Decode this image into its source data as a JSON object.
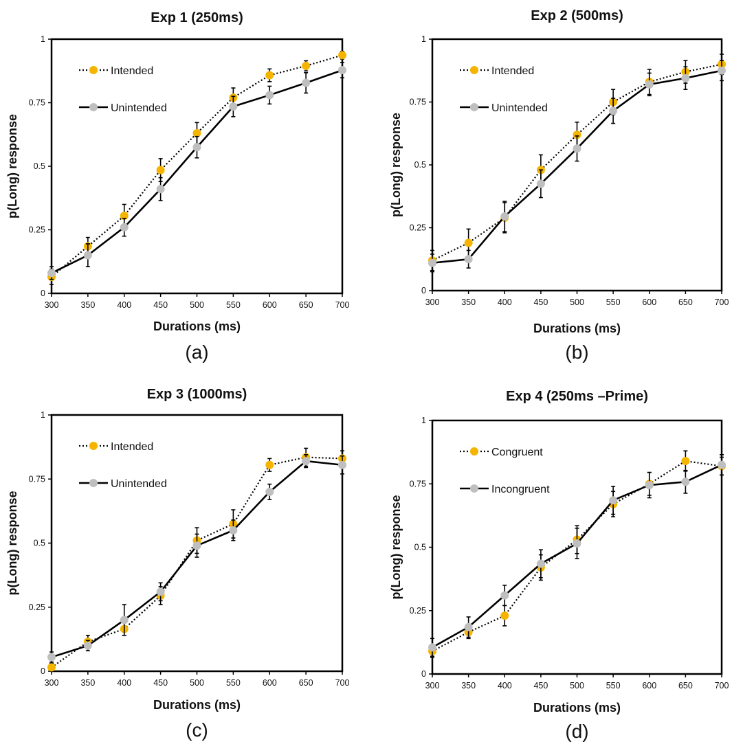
{
  "colors": {
    "intended": "#f5b400",
    "unintended": "#bfbfbf",
    "line": "#000000"
  },
  "chart_data": [
    {
      "type": "line",
      "title": "Exp 1 (250ms)",
      "caption": "(a)",
      "xlabel": "Durations (ms)",
      "ylabel": "p(Long) response",
      "x": [
        300,
        350,
        400,
        450,
        500,
        550,
        600,
        650,
        700
      ],
      "xticks": [
        "300",
        "350",
        "400",
        "450",
        "500",
        "550",
        "600",
        "650",
        "700"
      ],
      "yticks": [
        "0",
        "0.25",
        "0.5",
        "0.75",
        "1"
      ],
      "ylim": [
        0,
        1
      ],
      "legend": "top-left",
      "series": [
        {
          "name": "Intended",
          "style": "dotted",
          "color": "#f5b400",
          "values": [
            0.065,
            0.185,
            0.305,
            0.485,
            0.63,
            0.77,
            0.858,
            0.895,
            0.937
          ],
          "error": [
            0.03,
            0.035,
            0.045,
            0.045,
            0.042,
            0.038,
            0.025,
            0.02,
            0.015
          ]
        },
        {
          "name": "Unintended",
          "style": "solid",
          "color": "#bfbfbf",
          "values": [
            0.08,
            0.15,
            0.26,
            0.41,
            0.575,
            0.735,
            0.78,
            0.828,
            0.878
          ],
          "error": [
            0.025,
            0.045,
            0.035,
            0.045,
            0.042,
            0.04,
            0.035,
            0.04,
            0.03
          ]
        }
      ]
    },
    {
      "type": "line",
      "title": "Exp 2 (500ms)",
      "caption": "(b)",
      "xlabel": "Durations (ms)",
      "ylabel": "p(Long) response",
      "x": [
        300,
        350,
        400,
        450,
        500,
        550,
        600,
        650,
        700
      ],
      "xticks": [
        "300",
        "350",
        "400",
        "450",
        "500",
        "550",
        "600",
        "650",
        "700"
      ],
      "yticks": [
        "0",
        "0.25",
        "0.5",
        "0.75",
        "1"
      ],
      "ylim": [
        0,
        1
      ],
      "legend": "top-left",
      "series": [
        {
          "name": "Intended",
          "style": "dotted",
          "color": "#f5b400",
          "values": [
            0.12,
            0.19,
            0.29,
            0.48,
            0.62,
            0.75,
            0.83,
            0.87,
            0.9
          ],
          "error": [
            0.04,
            0.055,
            0.06,
            0.06,
            0.05,
            0.05,
            0.05,
            0.045,
            0.04
          ]
        },
        {
          "name": "Unintended",
          "style": "solid",
          "color": "#bfbfbf",
          "values": [
            0.11,
            0.125,
            0.295,
            0.425,
            0.565,
            0.715,
            0.82,
            0.845,
            0.875
          ],
          "error": [
            0.035,
            0.035,
            0.06,
            0.055,
            0.05,
            0.05,
            0.045,
            0.045,
            0.04
          ]
        }
      ]
    },
    {
      "type": "line",
      "title": "Exp 3 (1000ms)",
      "caption": "(c)",
      "xlabel": "Durations (ms)",
      "ylabel": "p(Long) response",
      "x": [
        300,
        350,
        400,
        450,
        500,
        550,
        600,
        650,
        700
      ],
      "xticks": [
        "300",
        "350",
        "400",
        "450",
        "500",
        "550",
        "600",
        "650",
        "700"
      ],
      "yticks": [
        "0",
        "0.25",
        "0.5",
        "0.75",
        "1"
      ],
      "ylim": [
        0,
        1
      ],
      "legend": "top-left",
      "series": [
        {
          "name": "Intended",
          "style": "dotted",
          "color": "#f5b400",
          "values": [
            0.015,
            0.115,
            0.165,
            0.295,
            0.51,
            0.575,
            0.805,
            0.835,
            0.83
          ],
          "error": [
            0.015,
            0.025,
            0.025,
            0.035,
            0.05,
            0.055,
            0.025,
            0.035,
            0.03
          ]
        },
        {
          "name": "Unintended",
          "style": "solid",
          "color": "#bfbfbf",
          "values": [
            0.055,
            0.1,
            0.2,
            0.31,
            0.49,
            0.55,
            0.7,
            0.82,
            0.805
          ],
          "error": [
            0.02,
            0.02,
            0.06,
            0.035,
            0.045,
            0.04,
            0.03,
            0.025,
            0.035
          ]
        }
      ]
    },
    {
      "type": "line",
      "title": "Exp 4 (250ms –Prime)",
      "caption": "(d)",
      "xlabel": "Durations (ms)",
      "ylabel": "p(Long) response",
      "x": [
        300,
        350,
        400,
        450,
        500,
        550,
        600,
        650,
        700
      ],
      "xticks": [
        "300",
        "350",
        "400",
        "450",
        "500",
        "550",
        "600",
        "650",
        "700"
      ],
      "yticks": [
        "0",
        "0.25",
        "0.5",
        "0.75",
        "1"
      ],
      "ylim": [
        0,
        1
      ],
      "legend": "top-left",
      "series": [
        {
          "name": "Congruent",
          "style": "dotted",
          "color": "#f5b400",
          "values": [
            0.09,
            0.165,
            0.23,
            0.42,
            0.53,
            0.67,
            0.75,
            0.84,
            0.82
          ],
          "error": [
            0.025,
            0.025,
            0.04,
            0.05,
            0.055,
            0.05,
            0.045,
            0.04,
            0.035
          ]
        },
        {
          "name": "Incongruent",
          "style": "solid",
          "color": "#bfbfbf",
          "values": [
            0.105,
            0.185,
            0.31,
            0.435,
            0.515,
            0.685,
            0.745,
            0.758,
            0.825
          ],
          "error": [
            0.035,
            0.04,
            0.04,
            0.055,
            0.06,
            0.055,
            0.05,
            0.045,
            0.04
          ]
        }
      ]
    }
  ]
}
